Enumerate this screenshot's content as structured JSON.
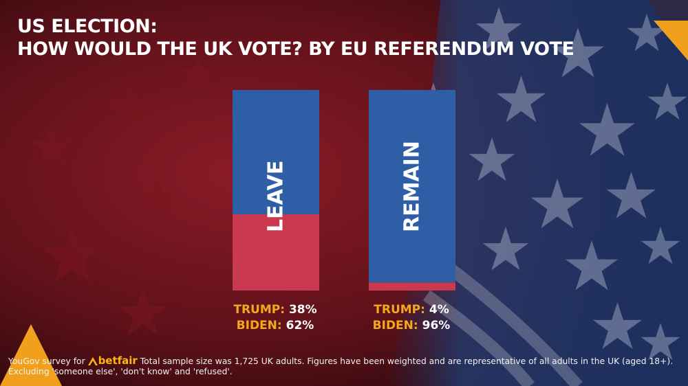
{
  "title": {
    "line1": "US ELECTION:",
    "line2": "HOW WOULD THE UK VOTE? BY EU REFERENDUM VOTE"
  },
  "chart_data": {
    "type": "bar",
    "stacked": true,
    "percent": true,
    "categories": [
      "LEAVE",
      "REMAIN"
    ],
    "series": [
      {
        "name": "TRUMP",
        "values": [
          38,
          4
        ],
        "color": "#c9394f"
      },
      {
        "name": "BIDEN",
        "values": [
          62,
          96
        ],
        "color": "#2e5fa6"
      }
    ],
    "ylim": [
      0,
      100
    ],
    "grid": false,
    "legend": "none"
  },
  "results": [
    {
      "trump_label": "TRUMP:",
      "trump_value": "38%",
      "biden_label": "BIDEN:",
      "biden_value": "62%"
    },
    {
      "trump_label": "TRUMP:",
      "trump_value": "4%",
      "biden_label": "BIDEN:",
      "biden_value": "96%"
    }
  ],
  "footer": {
    "prefix": "YouGov survey for",
    "brand": "betfair",
    "text": "Total sample size was 1,725 UK adults. Figures have been weighted and are representative of all adults in the UK (aged 18+). Excluding 'someone else', 'don't know' and 'refused'."
  },
  "colors": {
    "accent": "#f4a81c",
    "trump": "#c9394f",
    "biden": "#2e5fa6",
    "background_red": "#6b1520",
    "background_blue": "#24376a"
  }
}
